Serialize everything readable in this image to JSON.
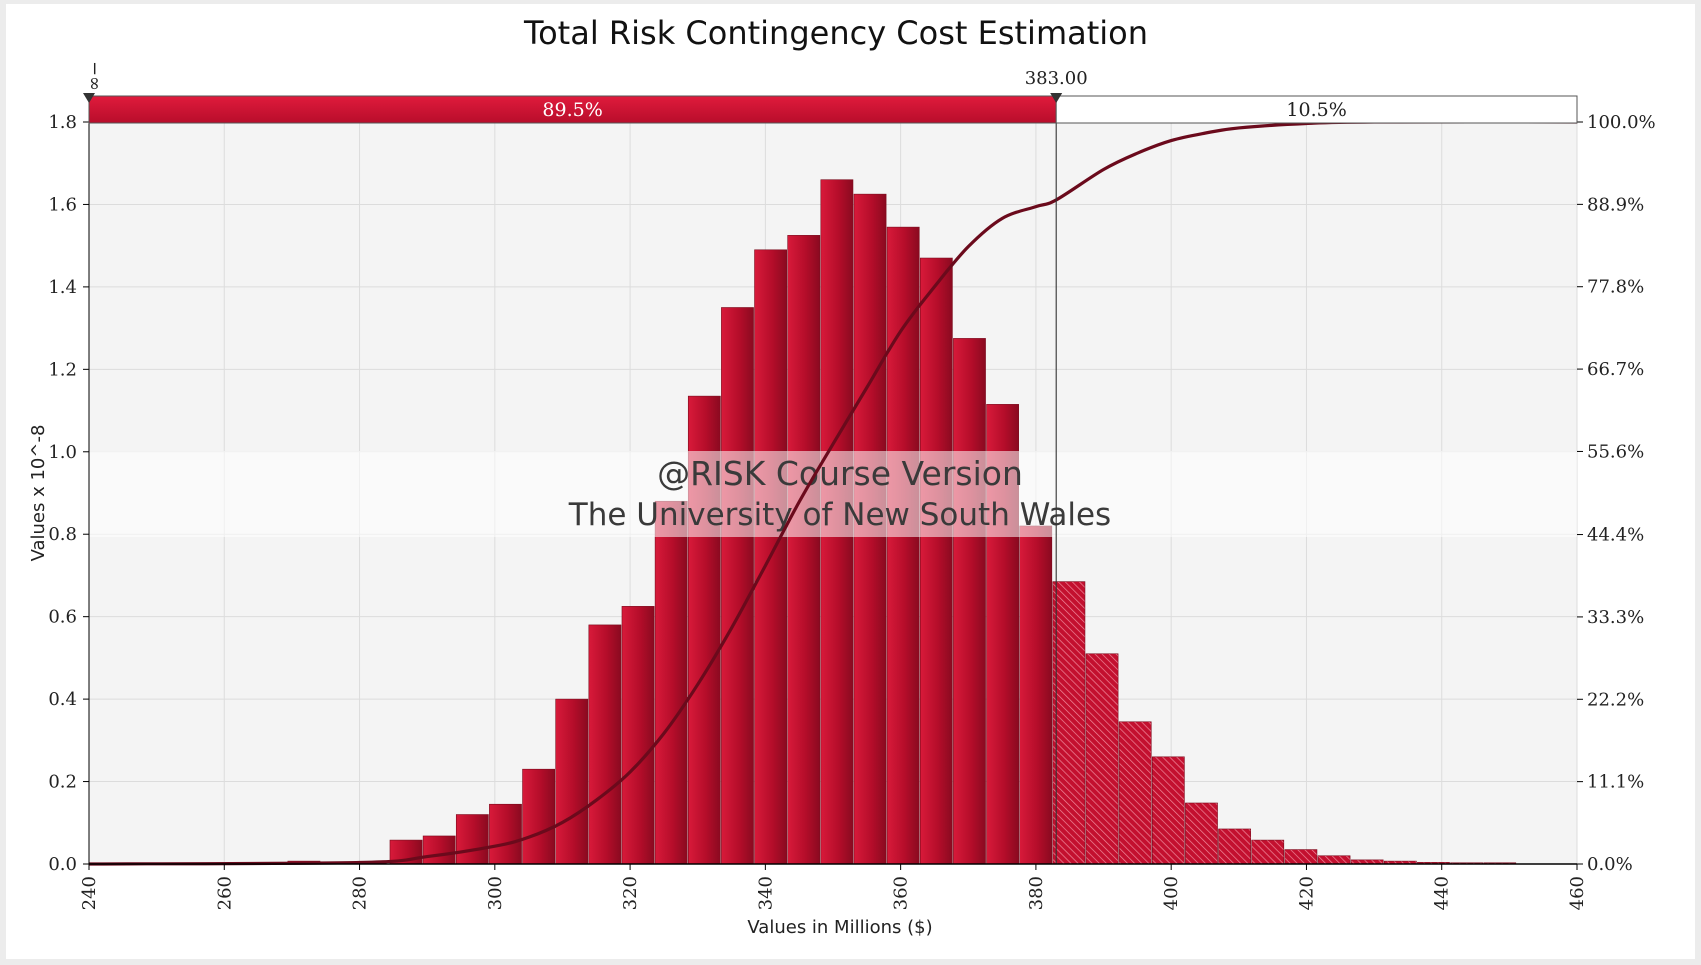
{
  "chart_data": {
    "type": "bar",
    "title": "Total Risk Contingency Cost Estimation",
    "xlabel": "Values in Millions ($)",
    "ylabel": "Values x 10^-8",
    "xlim": [
      240,
      460
    ],
    "ylim": [
      0,
      1.8
    ],
    "x_ticks": [
      "240",
      "260",
      "280",
      "300",
      "320",
      "340",
      "360",
      "380",
      "400",
      "420",
      "440",
      "460"
    ],
    "y_ticks": [
      "0.0",
      "0.2",
      "0.4",
      "0.6",
      "0.8",
      "1.0",
      "1.2",
      "1.4",
      "1.6",
      "1.8"
    ],
    "y2_ticks": [
      "0.0%",
      "11.1%",
      "22.2%",
      "33.3%",
      "44.4%",
      "55.6%",
      "66.7%",
      "77.8%",
      "88.9%",
      "100.0%"
    ],
    "grid": true,
    "bin_width": 4.9,
    "bins": [
      {
        "x0": 240.0,
        "value": 0.002
      },
      {
        "x0": 244.9,
        "value": 0.002
      },
      {
        "x0": 249.8,
        "value": 0.002
      },
      {
        "x0": 254.7,
        "value": 0.002
      },
      {
        "x0": 259.6,
        "value": 0.002
      },
      {
        "x0": 264.5,
        "value": 0.003
      },
      {
        "x0": 269.4,
        "value": 0.007
      },
      {
        "x0": 274.3,
        "value": 0.004
      },
      {
        "x0": 279.2,
        "value": 0.005
      },
      {
        "x0": 284.5,
        "value": 0.058
      },
      {
        "x0": 289.4,
        "value": 0.068
      },
      {
        "x0": 294.3,
        "value": 0.12
      },
      {
        "x0": 299.2,
        "value": 0.145
      },
      {
        "x0": 304.1,
        "value": 0.23
      },
      {
        "x0": 309.0,
        "value": 0.4
      },
      {
        "x0": 313.9,
        "value": 0.58
      },
      {
        "x0": 318.8,
        "value": 0.625
      },
      {
        "x0": 323.7,
        "value": 0.88
      },
      {
        "x0": 328.6,
        "value": 1.135
      },
      {
        "x0": 333.5,
        "value": 1.35
      },
      {
        "x0": 338.4,
        "value": 1.49
      },
      {
        "x0": 343.3,
        "value": 1.525
      },
      {
        "x0": 348.2,
        "value": 1.66
      },
      {
        "x0": 353.1,
        "value": 1.625
      },
      {
        "x0": 358.0,
        "value": 1.545
      },
      {
        "x0": 362.9,
        "value": 1.47
      },
      {
        "x0": 367.8,
        "value": 1.275
      },
      {
        "x0": 372.7,
        "value": 1.115
      },
      {
        "x0": 377.6,
        "value": 0.82
      },
      {
        "x0": 382.5,
        "value": 0.685
      },
      {
        "x0": 387.4,
        "value": 0.51
      },
      {
        "x0": 392.3,
        "value": 0.345
      },
      {
        "x0": 397.2,
        "value": 0.26
      },
      {
        "x0": 402.1,
        "value": 0.148
      },
      {
        "x0": 407.0,
        "value": 0.085
      },
      {
        "x0": 411.9,
        "value": 0.058
      },
      {
        "x0": 416.8,
        "value": 0.035
      },
      {
        "x0": 421.7,
        "value": 0.02
      },
      {
        "x0": 426.6,
        "value": 0.01
      },
      {
        "x0": 431.5,
        "value": 0.007
      },
      {
        "x0": 436.4,
        "value": 0.004
      },
      {
        "x0": 441.3,
        "value": 0.003
      },
      {
        "x0": 446.2,
        "value": 0.003
      }
    ],
    "cumulative": {
      "x": [
        240,
        280,
        290,
        300,
        305,
        310,
        315,
        320,
        325,
        330,
        335,
        340,
        345,
        350,
        355,
        360,
        365,
        370,
        375,
        380,
        383,
        390,
        395,
        400,
        405,
        410,
        420,
        430,
        460
      ],
      "y_percent": [
        0,
        0.2,
        1.0,
        2.4,
        3.6,
        5.6,
        8.6,
        12.4,
        17.6,
        24.2,
        31.8,
        40.2,
        48.8,
        56.6,
        64.2,
        71.8,
        77.8,
        83.2,
        87.0,
        88.6,
        89.5,
        93.6,
        95.8,
        97.5,
        98.5,
        99.2,
        99.8,
        100,
        100
      ]
    },
    "delimiter": {
      "left_value": "−∞",
      "right_value": "383.00",
      "marker_x": 383,
      "left_percent": "89.5%",
      "right_percent": "10.5%"
    },
    "watermark": {
      "line1": "@RISK Course Version",
      "line2": "The University of New South Wales"
    },
    "colors": {
      "bar": "#c3102f",
      "bar_dark": "#8a0a20",
      "curve": "#6b0a1c",
      "band_left": "#c8102e",
      "plot_bg": "#f4f4f4",
      "grid": "#dcdcdc"
    }
  }
}
